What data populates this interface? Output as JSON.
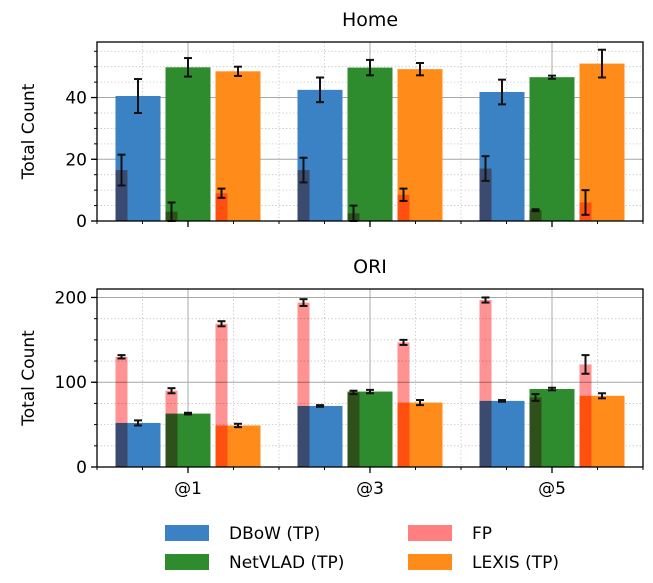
{
  "colors": {
    "dbow": "#3b82c4",
    "netvlad": "#2e8b2e",
    "lexis": "#ff8c1a",
    "fp": "#ff7f7f"
  },
  "chart_data": [
    {
      "type": "bar",
      "title": "Home",
      "ylabel": "Total Count",
      "ylim": [
        0,
        58
      ],
      "yticks": [
        0,
        20,
        40
      ],
      "categories": [
        "@1",
        "@3",
        "@5"
      ],
      "show_xticklabels": false,
      "series": [
        {
          "name": "DBoW (TP)",
          "color_key": "dbow",
          "values": [
            40.5,
            42.5,
            41.8
          ],
          "err": [
            5.5,
            4,
            4
          ]
        },
        {
          "name": "NetVLAD (TP)",
          "color_key": "netvlad",
          "values": [
            49.8,
            49.7,
            46.6
          ],
          "err": [
            3,
            2.5,
            0.5
          ]
        },
        {
          "name": "LEXIS (TP)",
          "color_key": "lexis",
          "values": [
            48.5,
            49.2,
            51
          ],
          "err": [
            1.5,
            2,
            4.5
          ]
        }
      ],
      "fp": [
        {
          "parent": "DBoW (TP)",
          "values": [
            16.5,
            16.5,
            17
          ],
          "err": [
            5,
            4,
            4
          ]
        },
        {
          "parent": "NetVLAD (TP)",
          "values": [
            3,
            2.5,
            3.5
          ],
          "err": [
            3,
            2.5,
            0.3
          ]
        },
        {
          "parent": "LEXIS (TP)",
          "values": [
            9,
            8.5,
            6
          ],
          "err": [
            1.5,
            2,
            4
          ]
        }
      ],
      "grid": true
    },
    {
      "type": "bar",
      "title": "ORI",
      "ylabel": "Total Count",
      "ylim": [
        0,
        210
      ],
      "yticks": [
        0,
        100,
        200
      ],
      "categories": [
        "@1",
        "@3",
        "@5"
      ],
      "show_xticklabels": true,
      "series": [
        {
          "name": "DBoW (TP)",
          "color_key": "dbow",
          "values": [
            52,
            72,
            78
          ],
          "err": [
            3,
            1,
            1
          ]
        },
        {
          "name": "NetVLAD (TP)",
          "color_key": "netvlad",
          "values": [
            63,
            89,
            92
          ],
          "err": [
            1,
            2,
            1.5
          ]
        },
        {
          "name": "LEXIS (TP)",
          "color_key": "lexis",
          "values": [
            49,
            76,
            84
          ],
          "err": [
            2,
            3,
            3
          ]
        }
      ],
      "fp": [
        {
          "parent": "DBoW (TP)",
          "values": [
            130,
            194,
            197
          ],
          "err": [
            2,
            4,
            3
          ]
        },
        {
          "parent": "NetVLAD (TP)",
          "values": [
            90,
            88,
            82
          ],
          "err": [
            3,
            2,
            4
          ]
        },
        {
          "parent": "LEXIS (TP)",
          "values": [
            169,
            147,
            121
          ],
          "err": [
            3,
            3,
            11
          ]
        }
      ],
      "grid": true
    }
  ],
  "legend": {
    "placement": "bottom",
    "items": [
      {
        "label": "DBoW (TP)",
        "color_key": "dbow"
      },
      {
        "label": "FP",
        "color_key": "fp"
      },
      {
        "label": "NetVLAD (TP)",
        "color_key": "netvlad"
      },
      {
        "label": "LEXIS (TP)",
        "color_key": "lexis"
      }
    ]
  }
}
